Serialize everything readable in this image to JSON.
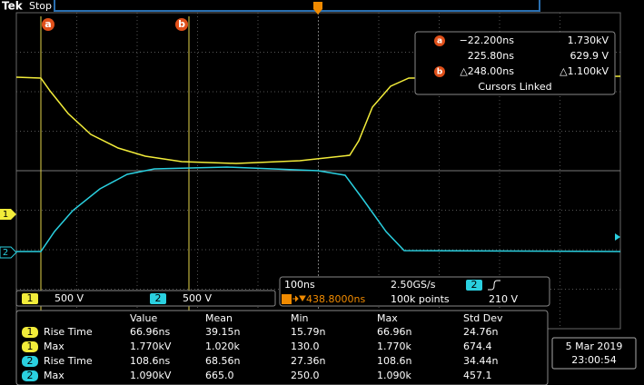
{
  "header": {
    "brand": "Tek",
    "status": "Stop"
  },
  "cursors": {
    "a": "a",
    "b": "b"
  },
  "cursor_readout": {
    "rows": [
      [
        "−22.200ns",
        "1.730kV"
      ],
      [
        "225.80ns",
        "629.9 V"
      ],
      [
        "△248.00ns",
        "△1.100kV"
      ]
    ],
    "footer": "Cursors Linked"
  },
  "channels": [
    {
      "number": "1",
      "scale": "500 V"
    },
    {
      "number": "2",
      "scale": "500 V"
    }
  ],
  "timebase": {
    "scale": "100ns",
    "sample_rate": "2.50GS/s",
    "trigger_channel": "2",
    "position": "438.8000ns",
    "record_length": "100k points",
    "trigger_level": "210 V"
  },
  "measurements": {
    "columns": [
      "Value",
      "Mean",
      "Min",
      "Max",
      "Std Dev"
    ],
    "rows": [
      {
        "channel": "1",
        "name": "Rise Time",
        "cells": [
          "66.96ns",
          "39.15n",
          "15.79n",
          "66.96n",
          "24.76n"
        ]
      },
      {
        "channel": "1",
        "name": "Max",
        "cells": [
          "1.770kV",
          "1.020k",
          "130.0",
          "1.770k",
          "674.4"
        ]
      },
      {
        "channel": "2",
        "name": "Rise Time",
        "cells": [
          "108.6ns",
          "68.56n",
          "27.36n",
          "108.6n",
          "34.44n"
        ]
      },
      {
        "channel": "2",
        "name": "Max",
        "cells": [
          "1.090kV",
          "665.0",
          "250.0",
          "1.090k",
          "457.1"
        ]
      }
    ]
  },
  "datetime": {
    "date": "5 Mar 2019",
    "time": "23:00:54"
  }
}
